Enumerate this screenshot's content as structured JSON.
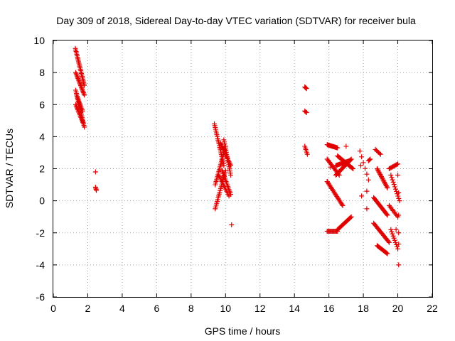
{
  "chart_data": {
    "type": "scatter",
    "title": "Day 309 of 2018, Sidereal Day-to-day VTEC variation (SDTVAR) for receiver bula",
    "xlabel": "GPS time / hours",
    "ylabel": "SDTVAR / TECUs",
    "xlim": [
      0,
      22
    ],
    "ylim": [
      -6,
      10
    ],
    "xticks": [
      0,
      2,
      4,
      6,
      8,
      10,
      12,
      14,
      16,
      18,
      20,
      22
    ],
    "yticks": [
      -6,
      -4,
      -2,
      0,
      2,
      4,
      6,
      8,
      10
    ],
    "grid": true,
    "marker": "+",
    "color": "#e00000",
    "series": [
      {
        "name": "SDTVAR",
        "tracks": [
          {
            "x0": 1.28,
            "x1": 1.8,
            "y0": 9.5,
            "y1": 7.2,
            "n": 26
          },
          {
            "x0": 1.3,
            "x1": 1.8,
            "y0": 8.0,
            "y1": 6.6,
            "n": 20
          },
          {
            "x0": 1.3,
            "x1": 1.8,
            "y0": 6.9,
            "y1": 4.6,
            "n": 24
          },
          {
            "x0": 1.3,
            "x1": 1.75,
            "y0": 6.0,
            "y1": 4.8,
            "n": 16
          },
          {
            "x0": 1.35,
            "x1": 1.7,
            "y0": 6.6,
            "y1": 5.6,
            "n": 12
          },
          {
            "x0": 2.45,
            "x1": 2.5,
            "y0": 0.85,
            "y1": 0.65,
            "n": 4
          },
          {
            "x0": 9.35,
            "x1": 9.9,
            "y0": 4.8,
            "y1": 2.2,
            "n": 24
          },
          {
            "x0": 9.4,
            "x1": 10.0,
            "y0": 1.0,
            "y1": 3.4,
            "n": 24
          },
          {
            "x0": 9.4,
            "x1": 10.0,
            "y0": -0.5,
            "y1": 1.9,
            "n": 22
          },
          {
            "x0": 9.9,
            "x1": 10.3,
            "y0": 3.8,
            "y1": 1.6,
            "n": 18
          },
          {
            "x0": 9.7,
            "x1": 10.3,
            "y0": 3.6,
            "y1": 2.2,
            "n": 18
          },
          {
            "x0": 9.8,
            "x1": 10.3,
            "y0": 1.9,
            "y1": 0.4,
            "n": 16
          },
          {
            "x0": 9.6,
            "x1": 10.2,
            "y0": 1.6,
            "y1": 0.3,
            "n": 14
          },
          {
            "x0": 14.6,
            "x1": 14.7,
            "y0": 7.1,
            "y1": 7.0,
            "n": 4
          },
          {
            "x0": 14.6,
            "x1": 14.7,
            "y0": 5.6,
            "y1": 5.5,
            "n": 3
          },
          {
            "x0": 14.6,
            "x1": 14.75,
            "y0": 3.4,
            "y1": 2.9,
            "n": 6
          },
          {
            "x0": 15.9,
            "x1": 16.5,
            "y0": 3.5,
            "y1": 3.3,
            "n": 16
          },
          {
            "x0": 15.9,
            "x1": 16.6,
            "y0": 2.6,
            "y1": 1.6,
            "n": 16
          },
          {
            "x0": 16.4,
            "x1": 17.3,
            "y0": 1.6,
            "y1": 2.6,
            "n": 22
          },
          {
            "x0": 16.5,
            "x1": 17.4,
            "y0": 2.8,
            "y1": 2.0,
            "n": 20
          },
          {
            "x0": 16.4,
            "x1": 17.2,
            "y0": 2.2,
            "y1": 2.5,
            "n": 18
          },
          {
            "x0": 15.9,
            "x1": 16.8,
            "y0": 1.2,
            "y1": -0.3,
            "n": 22
          },
          {
            "x0": 15.9,
            "x1": 16.5,
            "y0": -1.9,
            "y1": -1.9,
            "n": 12
          },
          {
            "x0": 16.5,
            "x1": 17.3,
            "y0": -1.8,
            "y1": -1.0,
            "n": 18
          },
          {
            "x0": 17.8,
            "x1": 18.3,
            "y0": 3.1,
            "y1": 1.3,
            "n": 6
          },
          {
            "x0": 18.3,
            "x1": 18.4,
            "y0": 2.5,
            "y1": 2.6,
            "n": 3
          },
          {
            "x0": 18.7,
            "x1": 19.0,
            "y0": 3.2,
            "y1": 2.9,
            "n": 6
          },
          {
            "x0": 18.8,
            "x1": 19.4,
            "y0": 2.0,
            "y1": 0.8,
            "n": 18
          },
          {
            "x0": 18.6,
            "x1": 19.4,
            "y0": 0.2,
            "y1": -0.9,
            "n": 20
          },
          {
            "x0": 18.6,
            "x1": 19.5,
            "y0": -1.4,
            "y1": -2.6,
            "n": 20
          },
          {
            "x0": 18.8,
            "x1": 19.4,
            "y0": -2.8,
            "y1": -3.3,
            "n": 14
          },
          {
            "x0": 19.5,
            "x1": 20.0,
            "y0": 2.0,
            "y1": 2.3,
            "n": 10
          },
          {
            "x0": 19.6,
            "x1": 20.1,
            "y0": 1.6,
            "y1": 0.0,
            "n": 12
          },
          {
            "x0": 19.5,
            "x1": 20.0,
            "y0": -0.3,
            "y1": -1.0,
            "n": 10
          },
          {
            "x0": 19.6,
            "x1": 20.0,
            "y0": -1.8,
            "y1": -3.0,
            "n": 10
          }
        ],
        "points": [
          [
            2.45,
            1.8
          ],
          [
            10.35,
            -1.5
          ],
          [
            15.9,
            1.2
          ],
          [
            16.1,
            2.1
          ],
          [
            17.0,
            3.4
          ],
          [
            17.9,
            0.3
          ],
          [
            18.2,
            -0.5
          ],
          [
            18.2,
            0.6
          ],
          [
            19.9,
            -1.8
          ],
          [
            20.0,
            1.6
          ],
          [
            20.05,
            0.5
          ],
          [
            20.05,
            -0.9
          ],
          [
            20.05,
            -2.0
          ],
          [
            20.05,
            -2.7
          ],
          [
            20.05,
            -4.0
          ],
          [
            17.85,
            2.2
          ]
        ]
      }
    ]
  }
}
